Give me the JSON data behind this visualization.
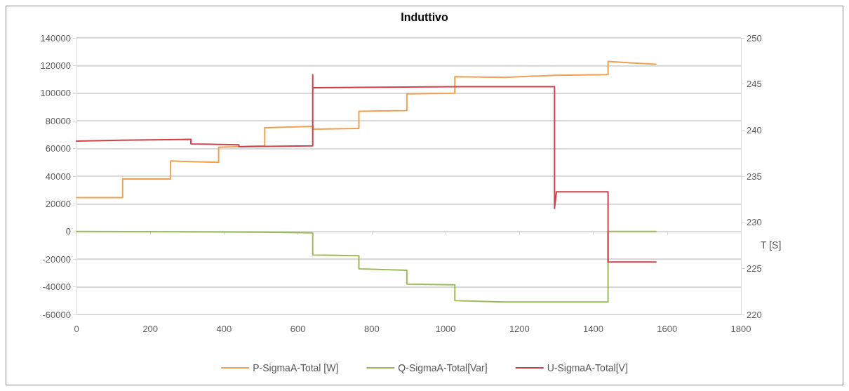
{
  "chart_data": {
    "type": "line",
    "title": "Induttivo",
    "xlabel": "T [S]",
    "xlim": [
      0,
      1800
    ],
    "xticks": [
      0,
      200,
      400,
      600,
      800,
      1000,
      1200,
      1400,
      1600,
      1800
    ],
    "ylim": [
      -60000,
      140000
    ],
    "yticks": [
      -60000,
      -40000,
      -20000,
      0,
      20000,
      40000,
      60000,
      80000,
      100000,
      120000,
      140000
    ],
    "y2lim": [
      220,
      250
    ],
    "y2ticks": [
      220,
      225,
      230,
      235,
      240,
      245,
      250
    ],
    "grid": "y",
    "legend": "bottom",
    "line_style": "solid",
    "marker": "none",
    "series": [
      {
        "name": "P-SigmaA-Total [W]",
        "color": "#f0a050",
        "x": [
          0,
          125,
          125,
          255,
          255,
          385,
          385,
          510,
          510,
          640,
          640,
          765,
          765,
          895,
          895,
          1025,
          1025,
          1160,
          1300,
          1440,
          1440,
          1500,
          1570
        ],
        "values": [
          24500,
          24500,
          38000,
          38000,
          51000,
          50000,
          61000,
          62000,
          75000,
          76000,
          74000,
          74500,
          87000,
          87500,
          99500,
          100000,
          112000,
          111500,
          113000,
          113500,
          123000,
          122000,
          121000
        ]
      },
      {
        "name": "Q-SigmaA-Total[Var]",
        "color": "#9bbb59",
        "x": [
          0,
          500,
          640,
          640,
          765,
          765,
          895,
          895,
          1025,
          1025,
          1160,
          1440,
          1440,
          1570
        ],
        "values": [
          0,
          -500,
          -1000,
          -17000,
          -17500,
          -27000,
          -28000,
          -38000,
          -38500,
          -50000,
          -51000,
          -51000,
          0,
          0
        ],
        "axis": "y"
      },
      {
        "name": "U-SigmaA-Total[V]",
        "color": "#d0404a",
        "x": [
          0,
          120,
          310,
          310,
          440,
          440,
          640,
          640,
          640,
          1025,
          1295,
          1295,
          1300,
          1440,
          1440,
          1570
        ],
        "values": [
          238.8,
          238.9,
          239,
          238.5,
          238.4,
          238.2,
          238.3,
          246,
          244.6,
          244.7,
          244.7,
          231.5,
          233.3,
          233.3,
          225.7,
          225.7
        ],
        "axis": "y2"
      }
    ]
  }
}
